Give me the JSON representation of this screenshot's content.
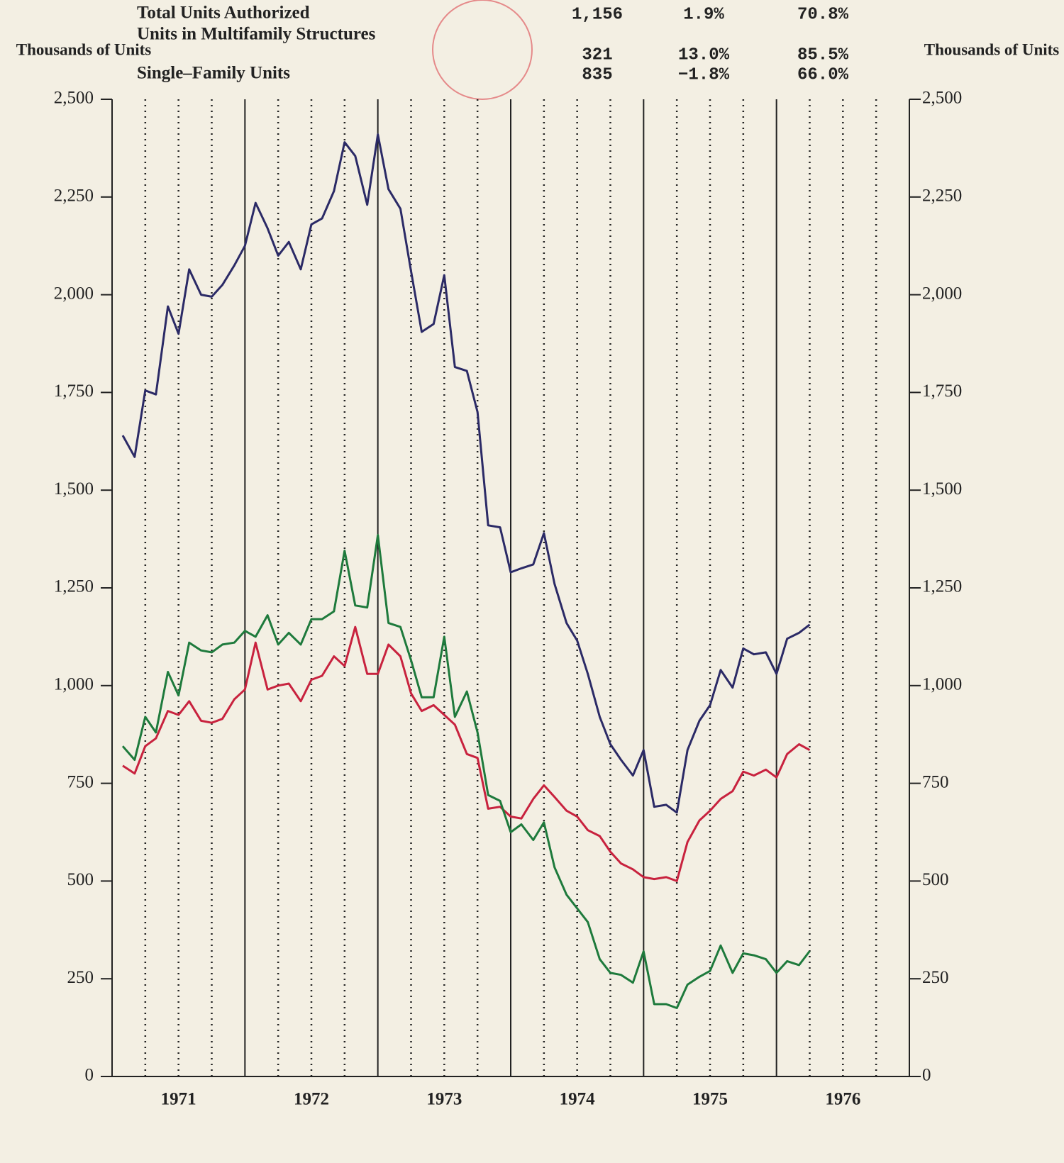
{
  "chart_data": {
    "type": "line",
    "y_label": "Thousands of Units",
    "y2_label": "Thousands of Units",
    "x": [
      1971.08,
      1971.17,
      1971.25,
      1971.33,
      1971.42,
      1971.5,
      1971.58,
      1971.67,
      1971.75,
      1971.83,
      1971.92,
      1972,
      1972.08,
      1972.17,
      1972.25,
      1972.33,
      1972.42,
      1972.5,
      1972.58,
      1972.67,
      1972.75,
      1972.83,
      1972.92,
      1973,
      1973.08,
      1973.17,
      1973.25,
      1973.33,
      1973.42,
      1973.5,
      1973.58,
      1973.67,
      1973.75,
      1973.83,
      1973.92,
      1974,
      1974.08,
      1974.17,
      1974.25,
      1974.33,
      1974.42,
      1974.5,
      1974.58,
      1974.67,
      1974.75,
      1974.83,
      1974.92,
      1975,
      1975.08,
      1975.17,
      1975.25,
      1975.33,
      1975.42,
      1975.5,
      1975.58,
      1975.67,
      1975.75,
      1975.83,
      1975.92,
      1976,
      1976.08,
      1976.17,
      1976.25
    ],
    "xlim": [
      1971,
      1977
    ],
    "xticks": [
      {
        "value": 1971.5,
        "label": "1971"
      },
      {
        "value": 1972.5,
        "label": "1972"
      },
      {
        "value": 1973.5,
        "label": "1973"
      },
      {
        "value": 1974.5,
        "label": "1974"
      },
      {
        "value": 1975.5,
        "label": "1975"
      },
      {
        "value": 1976.5,
        "label": "1976"
      }
    ],
    "xgrid": [
      1971,
      1971.25,
      1971.5,
      1971.75,
      1972,
      1972.25,
      1972.5,
      1972.75,
      1973,
      1973.25,
      1973.5,
      1973.75,
      1974,
      1974.25,
      1974.5,
      1974.75,
      1975,
      1975.25,
      1975.5,
      1975.75,
      1976,
      1976.25,
      1976.5,
      1976.75,
      1977
    ],
    "ylim": [
      0,
      2500
    ],
    "yticks": [
      0,
      250,
      500,
      750,
      {
        "value": 1000,
        "label": "1,000"
      },
      {
        "value": 1250,
        "label": "1,250"
      },
      {
        "value": 1500,
        "label": "1,500"
      },
      {
        "value": 1750,
        "label": "1,750"
      },
      {
        "value": 2000,
        "label": "2,000"
      },
      {
        "value": 2250,
        "label": "2,250"
      },
      {
        "value": 2500,
        "label": "2,500"
      }
    ],
    "series": [
      {
        "name": "Total Units Authorized",
        "color": "#2b2a66",
        "latest": "1,156",
        "change_last_period": "1.9%",
        "change_year_ago": "70.8%",
        "values": [
          1640,
          1585,
          1755,
          1745,
          1970,
          1900,
          2065,
          2000,
          1995,
          2025,
          2075,
          2125,
          2235,
          2170,
          2100,
          2135,
          2065,
          2180,
          2195,
          2265,
          2390,
          2355,
          2230,
          2410,
          2270,
          2220,
          2060,
          1905,
          1925,
          2050,
          1815,
          1805,
          1700,
          1410,
          1405,
          1290,
          1300,
          1310,
          1390,
          1260,
          1160,
          1115,
          1030,
          920,
          850,
          810,
          770,
          835,
          690,
          695,
          675,
          835,
          910,
          950,
          1040,
          995,
          1095,
          1080,
          1085,
          1030,
          1120,
          1135,
          1156
        ]
      },
      {
        "name": "Units in Multifamily Structures",
        "color": "#1e7a3c",
        "latest": "321",
        "change_last_period": "13.0%",
        "change_year_ago": "85.5%",
        "values": [
          845,
          810,
          920,
          880,
          1035,
          975,
          1110,
          1090,
          1085,
          1105,
          1110,
          1140,
          1125,
          1180,
          1105,
          1135,
          1105,
          1170,
          1170,
          1190,
          1345,
          1205,
          1200,
          1385,
          1160,
          1150,
          1065,
          970,
          970,
          1125,
          920,
          985,
          880,
          720,
          705,
          625,
          645,
          605,
          650,
          535,
          465,
          430,
          395,
          300,
          265,
          260,
          240,
          320,
          185,
          185,
          175,
          235,
          255,
          270,
          335,
          265,
          315,
          310,
          300,
          265,
          295,
          285,
          321
        ]
      },
      {
        "name": "Single–Family Units",
        "color": "#c8223e",
        "latest": "835",
        "change_last_period": "−1.8%",
        "change_year_ago": "66.0%",
        "values": [
          795,
          775,
          845,
          865,
          935,
          925,
          960,
          910,
          905,
          915,
          965,
          990,
          1110,
          990,
          1000,
          1005,
          960,
          1015,
          1025,
          1075,
          1050,
          1150,
          1030,
          1030,
          1105,
          1075,
          980,
          935,
          950,
          925,
          900,
          825,
          815,
          685,
          690,
          665,
          660,
          710,
          745,
          715,
          680,
          665,
          630,
          615,
          575,
          545,
          530,
          510,
          505,
          510,
          500,
          600,
          655,
          680,
          710,
          730,
          780,
          770,
          785,
          765,
          825,
          850,
          835
        ]
      }
    ]
  }
}
